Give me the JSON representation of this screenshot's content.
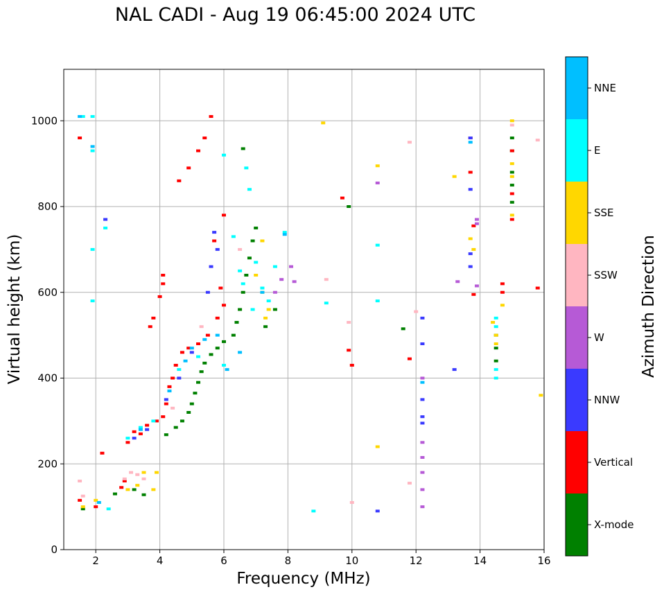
{
  "chart_data": {
    "type": "scatter",
    "title": "NAL CADI - Aug 19 06:45:00 2024 UTC",
    "xlabel": "Frequency (MHz)",
    "ylabel": "Virtual height (km)",
    "xlim": [
      1,
      16
    ],
    "ylim": [
      0,
      1120
    ],
    "xticks": [
      2,
      4,
      6,
      8,
      10,
      12,
      14,
      16
    ],
    "yticks": [
      0,
      200,
      400,
      600,
      800,
      1000
    ],
    "grid": true,
    "colorbar": {
      "label": "Azimuth Direction",
      "categories": [
        {
          "name": "X-mode",
          "color": "#008000"
        },
        {
          "name": "Vertical",
          "color": "#ff0000"
        },
        {
          "name": "NNW",
          "color": "#3a3aff"
        },
        {
          "name": "W",
          "color": "#b65ad6"
        },
        {
          "name": "SSW",
          "color": "#ffb6c1"
        },
        {
          "name": "SSE",
          "color": "#ffd700"
        },
        {
          "name": "E",
          "color": "#00ffff"
        },
        {
          "name": "NNE",
          "color": "#00bfff"
        }
      ]
    },
    "series": [
      {
        "name": "X-mode",
        "points": [
          [
            1.6,
            95
          ],
          [
            2.6,
            130
          ],
          [
            3.2,
            140
          ],
          [
            3.5,
            128
          ],
          [
            4.2,
            268
          ],
          [
            4.5,
            285
          ],
          [
            4.7,
            300
          ],
          [
            4.9,
            320
          ],
          [
            5.0,
            340
          ],
          [
            5.1,
            365
          ],
          [
            5.2,
            390
          ],
          [
            5.3,
            415
          ],
          [
            5.4,
            435
          ],
          [
            5.6,
            455
          ],
          [
            5.8,
            470
          ],
          [
            6.0,
            485
          ],
          [
            6.3,
            500
          ],
          [
            6.4,
            530
          ],
          [
            6.5,
            560
          ],
          [
            6.6,
            600
          ],
          [
            6.7,
            640
          ],
          [
            6.8,
            680
          ],
          [
            6.9,
            720
          ],
          [
            7.0,
            750
          ],
          [
            6.6,
            935
          ],
          [
            7.3,
            520
          ],
          [
            7.6,
            560
          ],
          [
            9.9,
            800
          ],
          [
            11.6,
            515
          ],
          [
            14.5,
            470
          ],
          [
            14.5,
            440
          ],
          [
            14.5,
            500
          ],
          [
            15.0,
            810
          ],
          [
            15.0,
            850
          ],
          [
            15.0,
            880
          ],
          [
            15.0,
            930
          ],
          [
            15.0,
            960
          ]
        ]
      },
      {
        "name": "Vertical",
        "points": [
          [
            1.5,
            960
          ],
          [
            1.5,
            115
          ],
          [
            2.0,
            100
          ],
          [
            2.2,
            225
          ],
          [
            2.8,
            145
          ],
          [
            2.9,
            160
          ],
          [
            3.0,
            250
          ],
          [
            3.2,
            275
          ],
          [
            3.4,
            270
          ],
          [
            3.6,
            290
          ],
          [
            3.9,
            300
          ],
          [
            4.1,
            310
          ],
          [
            4.2,
            340
          ],
          [
            4.3,
            380
          ],
          [
            4.4,
            400
          ],
          [
            4.5,
            430
          ],
          [
            4.7,
            460
          ],
          [
            4.9,
            470
          ],
          [
            5.2,
            480
          ],
          [
            5.5,
            500
          ],
          [
            5.8,
            540
          ],
          [
            6.0,
            570
          ],
          [
            3.7,
            520
          ],
          [
            3.8,
            540
          ],
          [
            4.0,
            590
          ],
          [
            4.1,
            620
          ],
          [
            4.1,
            640
          ],
          [
            4.6,
            860
          ],
          [
            4.9,
            890
          ],
          [
            5.2,
            930
          ],
          [
            5.4,
            960
          ],
          [
            5.6,
            1010
          ],
          [
            6.0,
            780
          ],
          [
            5.9,
            610
          ],
          [
            5.7,
            720
          ],
          [
            9.7,
            820
          ],
          [
            9.9,
            465
          ],
          [
            10.0,
            430
          ],
          [
            11.8,
            445
          ],
          [
            13.7,
            960
          ],
          [
            13.7,
            880
          ],
          [
            13.8,
            755
          ],
          [
            13.8,
            595
          ],
          [
            14.7,
            620
          ],
          [
            14.7,
            600
          ],
          [
            15.0,
            830
          ],
          [
            15.0,
            770
          ],
          [
            15.0,
            930
          ],
          [
            15.8,
            610
          ]
        ]
      },
      {
        "name": "NNW",
        "points": [
          [
            2.3,
            770
          ],
          [
            3.2,
            260
          ],
          [
            3.6,
            280
          ],
          [
            4.2,
            350
          ],
          [
            4.6,
            400
          ],
          [
            5.0,
            460
          ],
          [
            5.5,
            600
          ],
          [
            5.6,
            660
          ],
          [
            5.8,
            700
          ],
          [
            5.7,
            740
          ],
          [
            10.8,
            90
          ],
          [
            12.2,
            540
          ],
          [
            12.2,
            480
          ],
          [
            12.2,
            350
          ],
          [
            12.2,
            310
          ],
          [
            12.2,
            295
          ],
          [
            13.2,
            420
          ],
          [
            13.7,
            840
          ],
          [
            13.7,
            690
          ],
          [
            13.7,
            660
          ],
          [
            13.7,
            960
          ]
        ]
      },
      {
        "name": "W",
        "points": [
          [
            10.8,
            855
          ],
          [
            12.2,
            400
          ],
          [
            12.2,
            250
          ],
          [
            12.2,
            215
          ],
          [
            12.2,
            180
          ],
          [
            12.2,
            140
          ],
          [
            12.2,
            100
          ],
          [
            13.3,
            625
          ],
          [
            13.9,
            615
          ],
          [
            13.9,
            770
          ],
          [
            13.9,
            760
          ],
          [
            8.2,
            625
          ],
          [
            8.1,
            660
          ],
          [
            7.8,
            630
          ],
          [
            7.6,
            600
          ]
        ]
      },
      {
        "name": "SSW",
        "points": [
          [
            1.5,
            160
          ],
          [
            1.6,
            125
          ],
          [
            2.9,
            165
          ],
          [
            3.1,
            180
          ],
          [
            3.3,
            175
          ],
          [
            3.5,
            165
          ],
          [
            4.4,
            330
          ],
          [
            5.3,
            520
          ],
          [
            6.5,
            700
          ],
          [
            9.2,
            630
          ],
          [
            9.9,
            530
          ],
          [
            10.0,
            110
          ],
          [
            11.8,
            950
          ],
          [
            11.8,
            155
          ],
          [
            12.0,
            555
          ],
          [
            15.0,
            990
          ],
          [
            15.8,
            955
          ]
        ]
      },
      {
        "name": "SSE",
        "points": [
          [
            1.6,
            100
          ],
          [
            2.0,
            115
          ],
          [
            3.0,
            140
          ],
          [
            3.3,
            150
          ],
          [
            3.5,
            180
          ],
          [
            3.8,
            140
          ],
          [
            3.9,
            180
          ],
          [
            7.0,
            640
          ],
          [
            7.2,
            600
          ],
          [
            7.3,
            540
          ],
          [
            7.4,
            560
          ],
          [
            7.2,
            720
          ],
          [
            9.1,
            995
          ],
          [
            10.8,
            240
          ],
          [
            10.8,
            895
          ],
          [
            13.2,
            870
          ],
          [
            13.7,
            725
          ],
          [
            13.8,
            700
          ],
          [
            14.4,
            530
          ],
          [
            14.5,
            480
          ],
          [
            14.5,
            500
          ],
          [
            14.7,
            570
          ],
          [
            15.0,
            1000
          ],
          [
            15.0,
            900
          ],
          [
            15.0,
            870
          ],
          [
            15.0,
            780
          ],
          [
            15.9,
            360
          ]
        ]
      },
      {
        "name": "E",
        "points": [
          [
            1.6,
            1010
          ],
          [
            1.9,
            1010
          ],
          [
            1.9,
            930
          ],
          [
            1.9,
            700
          ],
          [
            1.9,
            580
          ],
          [
            2.3,
            750
          ],
          [
            2.4,
            95
          ],
          [
            3.0,
            260
          ],
          [
            3.4,
            285
          ],
          [
            3.8,
            300
          ],
          [
            4.6,
            420
          ],
          [
            5.2,
            450
          ],
          [
            6.0,
            430
          ],
          [
            6.0,
            920
          ],
          [
            6.3,
            730
          ],
          [
            6.5,
            650
          ],
          [
            6.6,
            620
          ],
          [
            6.7,
            890
          ],
          [
            6.8,
            840
          ],
          [
            6.9,
            560
          ],
          [
            7.0,
            670
          ],
          [
            7.2,
            610
          ],
          [
            7.4,
            580
          ],
          [
            7.6,
            660
          ],
          [
            7.9,
            740
          ],
          [
            8.8,
            90
          ],
          [
            9.2,
            575
          ],
          [
            10.8,
            710
          ],
          [
            10.8,
            580
          ],
          [
            14.5,
            540
          ],
          [
            14.5,
            520
          ],
          [
            14.5,
            420
          ],
          [
            14.5,
            400
          ]
        ]
      },
      {
        "name": "NNE",
        "points": [
          [
            1.5,
            1010
          ],
          [
            1.9,
            940
          ],
          [
            2.1,
            110
          ],
          [
            3.4,
            280
          ],
          [
            4.3,
            370
          ],
          [
            4.8,
            440
          ],
          [
            5.0,
            470
          ],
          [
            5.4,
            490
          ],
          [
            5.8,
            500
          ],
          [
            6.1,
            420
          ],
          [
            6.5,
            460
          ],
          [
            7.2,
            600
          ],
          [
            7.9,
            735
          ],
          [
            12.2,
            390
          ],
          [
            13.7,
            950
          ]
        ]
      }
    ]
  }
}
